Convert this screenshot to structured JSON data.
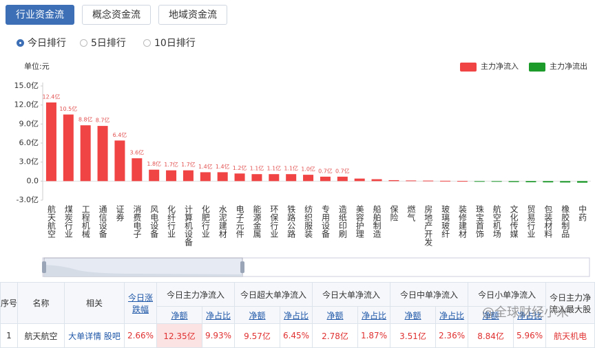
{
  "tabs": [
    "行业资金流",
    "概念资金流",
    "地域资金流"
  ],
  "active_tab": 0,
  "radios": [
    "今日排行",
    "5日排行",
    "10日排行"
  ],
  "active_radio": 0,
  "watermark": "@全球财经小米",
  "chart_data": {
    "type": "bar",
    "unit_label": "单位:元",
    "legend": [
      {
        "name": "主力净流入",
        "color": "#f04444"
      },
      {
        "name": "主力净流出",
        "color": "#1c9a2a"
      }
    ],
    "categories": [
      "航天航空",
      "煤炭行业",
      "工程机械",
      "通信设备",
      "证券",
      "消费电子",
      "风电设备",
      "化纤行业",
      "计算机设备",
      "化肥行业",
      "水泥建材",
      "电子元件",
      "能源金属",
      "环保行业",
      "铁路公路",
      "纺织服装",
      "专用设备",
      "造纸印刷",
      "美容护理",
      "船舶制造",
      "保险",
      "燃气",
      "房地产开发",
      "玻璃玻纤",
      "装修建材",
      "珠宝首饰",
      "航空机场",
      "文化传媒",
      "贸易行业",
      "包装材料",
      "橡胶制品",
      "中药"
    ],
    "values": [
      12.4,
      10.5,
      8.8,
      8.7,
      6.4,
      3.6,
      1.8,
      1.7,
      1.7,
      1.4,
      1.4,
      1.2,
      1.1,
      1.1,
      1.1,
      1.0,
      0.7,
      0.7,
      0.4,
      0.3,
      0.15,
      0.1,
      0.08,
      0.05,
      0.02,
      -0.02,
      -0.1,
      -0.15,
      -0.18,
      -0.2,
      -0.22,
      -0.25
    ],
    "value_labels": [
      "12.4亿",
      "10.5亿",
      "8.8亿",
      "8.7亿",
      "6.4亿",
      "3.6亿",
      "1.8亿",
      "1.7亿",
      "1.7亿",
      "1.4亿",
      "1.4亿",
      "1.2亿",
      "1.1亿",
      "1.1亿",
      "1.1亿",
      "1.0亿",
      "0.7亿",
      "0.7亿",
      null,
      null,
      null,
      null,
      null,
      null,
      null,
      null,
      null,
      null,
      null,
      null,
      null,
      null
    ],
    "ylim": [
      -3,
      15
    ],
    "yticks": [
      {
        "value": 15,
        "label": "15.0亿"
      },
      {
        "value": 12,
        "label": "12.0亿"
      },
      {
        "value": 9,
        "label": "9.0亿"
      },
      {
        "value": 6,
        "label": "6.0亿"
      },
      {
        "value": 3,
        "label": "3.0亿"
      },
      {
        "value": 0,
        "label": "0.0"
      },
      {
        "value": -3,
        "label": "-3.0亿"
      }
    ],
    "grid": false
  },
  "table": {
    "headers": [
      "序号",
      "名称",
      "相关",
      "今日涨跌幅",
      "今日主力净流入",
      "今日超大单净流入",
      "今日大单净流入",
      "今日中单净流入",
      "今日小单净流入",
      "今日主力净流入最大股"
    ],
    "subheaders": [
      "净额",
      "净占比",
      "净额",
      "净占比",
      "净额",
      "净占比",
      "净额",
      "净占比",
      "净额",
      "净占比"
    ],
    "rows": [
      [
        "1",
        "航天航空",
        "大单详情 股吧",
        "2.66%",
        "12.35亿",
        "9.93%",
        "9.57亿",
        "6.45%",
        "2.78亿",
        "1.87%",
        "3.51亿",
        "2.36%",
        "8.84亿",
        "5.96%",
        "航天机电"
      ]
    ]
  }
}
